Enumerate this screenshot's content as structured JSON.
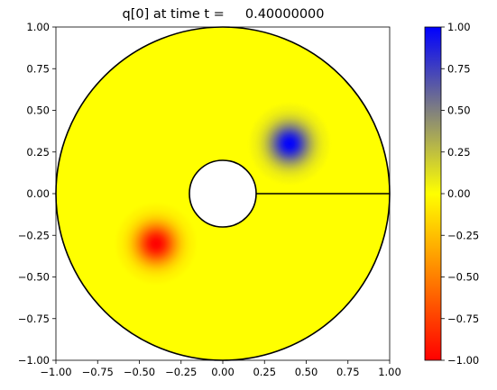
{
  "chart_data": {
    "type": "heatmap",
    "title": "q[0] at time t =     0.40000000",
    "xlabel": "",
    "ylabel": "",
    "xlim": [
      -1.0,
      1.0
    ],
    "ylim": [
      -1.0,
      1.0
    ],
    "grid": false,
    "x_ticks": [
      -1.0,
      -0.75,
      -0.5,
      -0.25,
      0.0,
      0.25,
      0.5,
      0.75,
      1.0
    ],
    "x_tick_labels": [
      "−1.00",
      "−0.75",
      "−0.50",
      "−0.25",
      "0.00",
      "0.25",
      "0.50",
      "0.75",
      "1.00"
    ],
    "y_ticks": [
      1.0,
      0.75,
      0.5,
      0.25,
      0.0,
      -0.25,
      -0.5,
      -0.75,
      -1.0
    ],
    "y_tick_labels": [
      "1.00",
      "0.75",
      "0.50",
      "0.25",
      "0.00",
      "−0.25",
      "−0.50",
      "−0.75",
      "−1.00"
    ],
    "domain": {
      "shape": "annulus",
      "center": [
        0.0,
        0.0
      ],
      "outer_radius": 1.0,
      "inner_radius": 0.2,
      "cut_line": {
        "from": [
          0.2,
          0.0
        ],
        "to": [
          1.0,
          0.0
        ]
      }
    },
    "background_value": 0.0,
    "blobs": [
      {
        "center": [
          0.4,
          0.3
        ],
        "peak": 1.0,
        "sigma": 0.085,
        "color_at_peak": "#0000ff"
      },
      {
        "center": [
          -0.4,
          -0.3
        ],
        "peak": -1.0,
        "sigma": 0.085,
        "color_at_peak": "#ff0000"
      }
    ],
    "colorbar": {
      "min": -1.0,
      "max": 1.0,
      "ticks": [
        1.0,
        0.75,
        0.5,
        0.25,
        0.0,
        -0.25,
        -0.5,
        -0.75,
        -1.0
      ],
      "tick_labels": [
        "1.00",
        "0.75",
        "0.50",
        "0.25",
        "0.00",
        "−0.25",
        "−0.50",
        "−0.75",
        "−1.00"
      ],
      "colormap_stops": [
        {
          "value": -1.0,
          "color": "#ff0000"
        },
        {
          "value": 0.0,
          "color": "#ffff00"
        },
        {
          "value": 1.0,
          "color": "#0000ff"
        }
      ]
    }
  }
}
